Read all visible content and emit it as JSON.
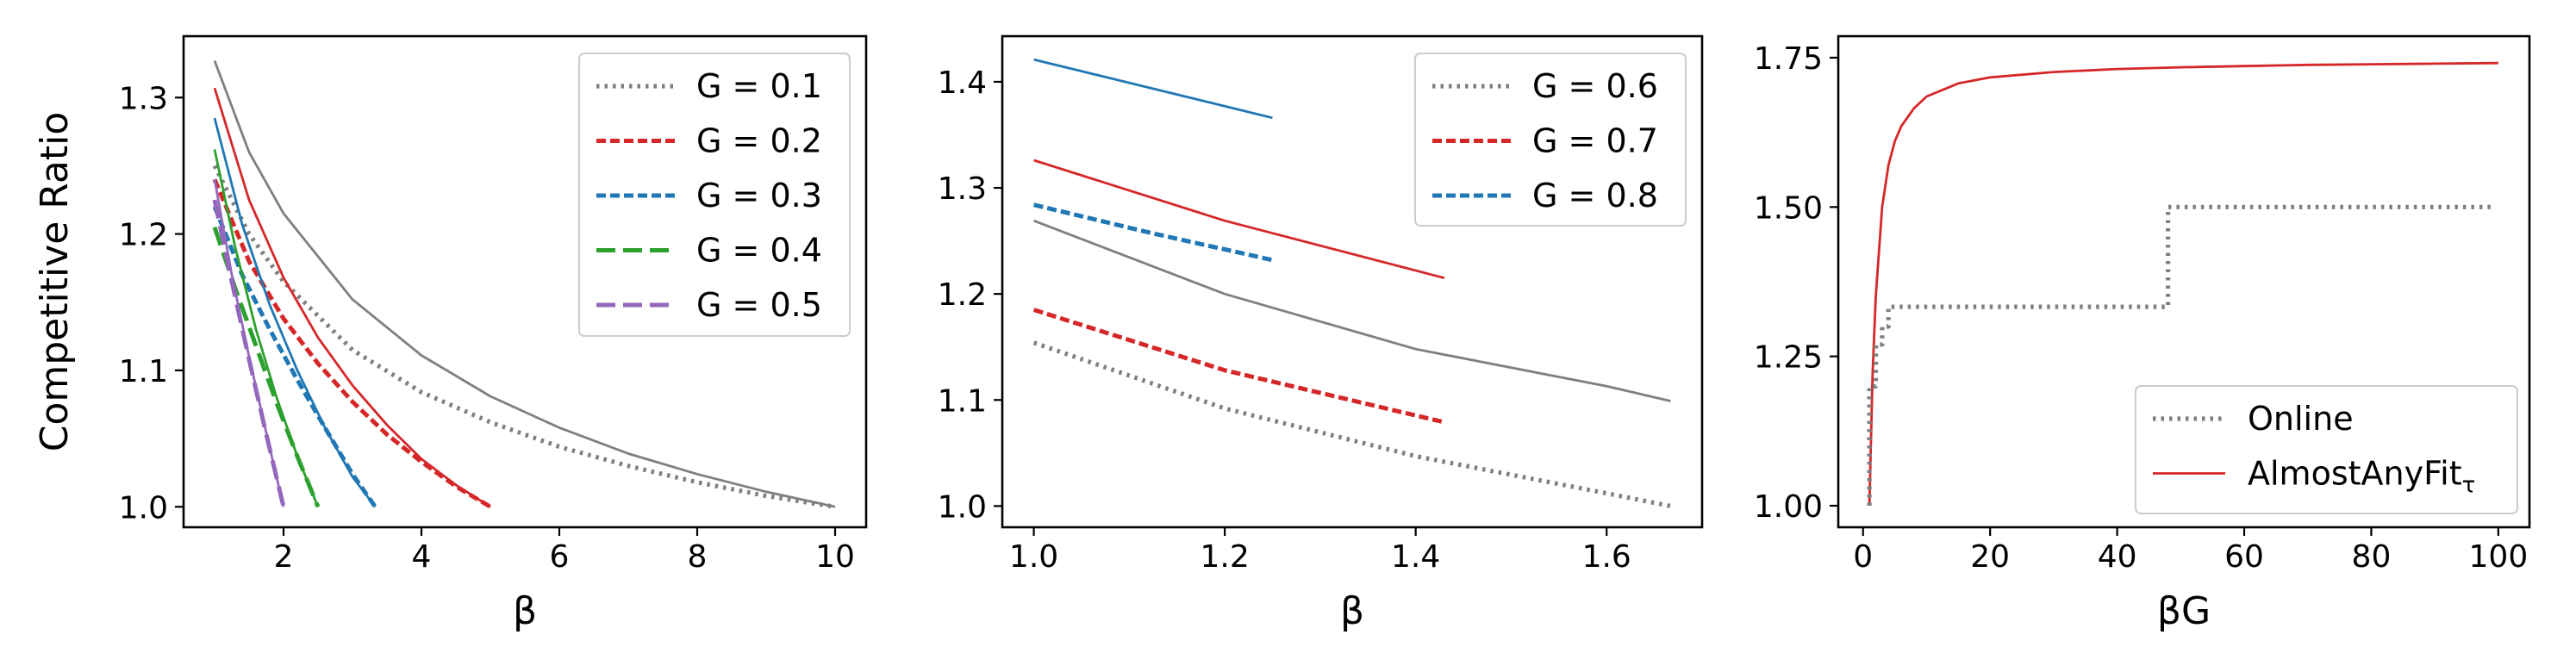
{
  "colors": {
    "gray": "#7f7f7f",
    "red": "#d62728",
    "blue": "#1f77b4",
    "green": "#2ca02c",
    "purple": "#9467bd"
  },
  "chart_data": [
    {
      "id": "panel1",
      "type": "line",
      "xlabel": "β",
      "ylabel": "Competitive Ratio",
      "xlim": [
        0.55,
        10.45
      ],
      "ylim": [
        0.985,
        1.345
      ],
      "xticks": [
        2,
        4,
        6,
        8,
        10
      ],
      "xtick_labels": [
        "2",
        "4",
        "6",
        "8",
        "10"
      ],
      "yticks": [
        1.0,
        1.1,
        1.2,
        1.3
      ],
      "ytick_labels": [
        "1.0",
        "1.1",
        "1.2",
        "1.3"
      ],
      "grid": false,
      "legend_position": "upper-right",
      "legend": [
        {
          "label": "G = 0.1",
          "color": "gray",
          "dash": "dotted"
        },
        {
          "label": "G = 0.2",
          "color": "red",
          "dash": "dashed"
        },
        {
          "label": "G = 0.3",
          "color": "blue",
          "dash": "dashed"
        },
        {
          "label": "G = 0.4",
          "color": "green",
          "dash": "longdash"
        },
        {
          "label": "G = 0.5",
          "color": "purple",
          "dash": "longdash"
        }
      ],
      "series": [
        {
          "color": "gray",
          "dash": "solid",
          "x": [
            1.0,
            1.5,
            2.0,
            3.0,
            4.0,
            5.0,
            6.0,
            7.0,
            8.0,
            9.0,
            10.0
          ],
          "y": [
            1.327,
            1.26,
            1.215,
            1.152,
            1.111,
            1.081,
            1.058,
            1.039,
            1.024,
            1.011,
            1.0
          ]
        },
        {
          "color": "gray",
          "dash": "dotted",
          "x": [
            1.0,
            1.5,
            2.0,
            3.0,
            4.0,
            5.0,
            6.0,
            7.0,
            8.0,
            9.0,
            10.0
          ],
          "y": [
            1.25,
            1.2,
            1.165,
            1.115,
            1.084,
            1.062,
            1.044,
            1.03,
            1.018,
            1.008,
            1.0
          ]
        },
        {
          "color": "red",
          "dash": "solid",
          "x": [
            1.0,
            1.5,
            2.0,
            2.5,
            3.0,
            3.5,
            4.0,
            4.5,
            5.0
          ],
          "y": [
            1.307,
            1.225,
            1.168,
            1.124,
            1.089,
            1.06,
            1.035,
            1.016,
            1.0
          ]
        },
        {
          "color": "red",
          "dash": "dashed",
          "x": [
            1.0,
            1.5,
            2.0,
            2.5,
            3.0,
            3.5,
            4.0,
            4.5,
            5.0
          ],
          "y": [
            1.24,
            1.18,
            1.138,
            1.105,
            1.077,
            1.053,
            1.033,
            1.015,
            1.0
          ]
        },
        {
          "color": "blue",
          "dash": "solid",
          "x": [
            1.0,
            1.4,
            1.8,
            2.2,
            2.6,
            3.0,
            3.33
          ],
          "y": [
            1.285,
            1.207,
            1.148,
            1.1,
            1.058,
            1.022,
            1.0
          ]
        },
        {
          "color": "blue",
          "dash": "dashed",
          "x": [
            1.0,
            1.4,
            1.8,
            2.2,
            2.6,
            3.0,
            3.33
          ],
          "y": [
            1.22,
            1.17,
            1.13,
            1.093,
            1.058,
            1.024,
            1.0
          ]
        },
        {
          "color": "green",
          "dash": "solid",
          "x": [
            1.0,
            1.3,
            1.6,
            1.9,
            2.2,
            2.5
          ],
          "y": [
            1.262,
            1.19,
            1.13,
            1.08,
            1.037,
            1.0
          ]
        },
        {
          "color": "green",
          "dash": "longdash",
          "x": [
            1.0,
            1.3,
            1.6,
            1.9,
            2.2,
            2.5
          ],
          "y": [
            1.205,
            1.16,
            1.118,
            1.076,
            1.037,
            1.0
          ]
        },
        {
          "color": "purple",
          "dash": "solid",
          "x": [
            1.0,
            1.25,
            1.5,
            1.75,
            2.0
          ],
          "y": [
            1.24,
            1.17,
            1.11,
            1.054,
            1.0
          ]
        },
        {
          "color": "purple",
          "dash": "longdash",
          "x": [
            1.0,
            1.25,
            1.5,
            1.75,
            2.0
          ],
          "y": [
            1.225,
            1.165,
            1.108,
            1.053,
            1.0
          ]
        }
      ]
    },
    {
      "id": "panel2",
      "type": "line",
      "xlabel": "β",
      "ylabel": "",
      "xlim": [
        0.967,
        1.7
      ],
      "ylim": [
        0.98,
        1.443
      ],
      "xticks": [
        1.0,
        1.2,
        1.4,
        1.6
      ],
      "xtick_labels": [
        "1.0",
        "1.2",
        "1.4",
        "1.6"
      ],
      "yticks": [
        1.0,
        1.1,
        1.2,
        1.3,
        1.4
      ],
      "ytick_labels": [
        "1.0",
        "1.1",
        "1.2",
        "1.3",
        "1.4"
      ],
      "grid": false,
      "legend_position": "upper-right",
      "legend": [
        {
          "label": "G = 0.6",
          "color": "gray",
          "dash": "dotted"
        },
        {
          "label": "G = 0.7",
          "color": "red",
          "dash": "dashed"
        },
        {
          "label": "G = 0.8",
          "color": "blue",
          "dash": "dashed"
        }
      ],
      "series": [
        {
          "color": "blue",
          "dash": "solid",
          "x": [
            1.0,
            1.25
          ],
          "y": [
            1.421,
            1.366
          ]
        },
        {
          "color": "blue",
          "dash": "dashed",
          "x": [
            1.0,
            1.125,
            1.25
          ],
          "y": [
            1.284,
            1.257,
            1.232
          ]
        },
        {
          "color": "red",
          "dash": "solid",
          "x": [
            1.0,
            1.2,
            1.43
          ],
          "y": [
            1.326,
            1.269,
            1.215
          ]
        },
        {
          "color": "red",
          "dash": "dashed",
          "x": [
            1.0,
            1.2,
            1.43
          ],
          "y": [
            1.185,
            1.128,
            1.079
          ]
        },
        {
          "color": "gray",
          "dash": "solid",
          "x": [
            1.0,
            1.2,
            1.4,
            1.6,
            1.667
          ],
          "y": [
            1.269,
            1.2,
            1.148,
            1.113,
            1.099
          ]
        },
        {
          "color": "gray",
          "dash": "dotted",
          "x": [
            1.0,
            1.2,
            1.4,
            1.6,
            1.667
          ],
          "y": [
            1.154,
            1.092,
            1.047,
            1.012,
            1.0
          ]
        }
      ]
    },
    {
      "id": "panel3",
      "type": "line",
      "xlabel": "βG",
      "ylabel": "",
      "xlim": [
        -3.9,
        104.9
      ],
      "ylim": [
        0.964,
        1.786
      ],
      "xticks": [
        0,
        20,
        40,
        60,
        80,
        100
      ],
      "xtick_labels": [
        "0",
        "20",
        "40",
        "60",
        "80",
        "100"
      ],
      "yticks": [
        1.0,
        1.25,
        1.5,
        1.75
      ],
      "ytick_labels": [
        "1.00",
        "1.25",
        "1.50",
        "1.75"
      ],
      "grid": false,
      "legend_position": "lower-right",
      "legend": [
        {
          "label": "Online",
          "color": "gray",
          "dash": "dotted"
        },
        {
          "label": "AlmostAnyFit",
          "subscript": "τ",
          "color": "red",
          "dash": "solid"
        }
      ],
      "series": [
        {
          "color": "red",
          "dash": "solid",
          "x": [
            1,
            1.5,
            2,
            3,
            4,
            5,
            6,
            8,
            10,
            15,
            20,
            30,
            40,
            50,
            60,
            70,
            80,
            90,
            100
          ],
          "y": [
            1.0,
            1.22,
            1.35,
            1.5,
            1.57,
            1.61,
            1.635,
            1.665,
            1.685,
            1.707,
            1.717,
            1.726,
            1.731,
            1.734,
            1.736,
            1.738,
            1.739,
            1.74,
            1.741
          ]
        },
        {
          "color": "gray",
          "dash": "dotted",
          "x": [
            1,
            1,
            2,
            2,
            3,
            3,
            4,
            4,
            48,
            48,
            99
          ],
          "y": [
            1.0,
            1.2,
            1.2,
            1.27,
            1.27,
            1.3,
            1.3,
            1.333,
            1.333,
            1.5,
            1.5
          ]
        }
      ]
    }
  ]
}
